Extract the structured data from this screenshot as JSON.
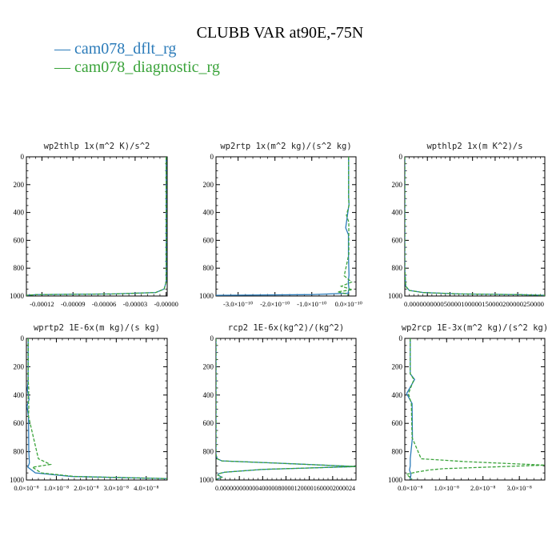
{
  "title": "CLUBB VAR at90E,-75N",
  "legend": [
    {
      "label": "— cam078_dflt_rg",
      "color": "#2b7bb9"
    },
    {
      "label": "— cam078_diagnostic_rg",
      "color": "#3aa33a"
    }
  ],
  "chart_data": [
    {
      "type": "line",
      "title": "wp2thlp   1x(m^2 K)/s^2",
      "ylim": [
        1000,
        0
      ],
      "yticks": [
        "0",
        "200",
        "400",
        "600",
        "800",
        "1000"
      ],
      "xlim": [
        -0.000135,
        1e-06
      ],
      "xticks": [
        {
          "v": -0.00012,
          "label": "-0.00012"
        },
        {
          "v": -9e-05,
          "label": "-0.00009"
        },
        {
          "v": -6e-05,
          "label": "-0.00006"
        },
        {
          "v": -3e-05,
          "label": "-0.00003"
        },
        {
          "v": 0,
          "label": "-0.00000"
        }
      ],
      "series": [
        {
          "name": "cam078_dflt_rg",
          "color": "#2b7bb9",
          "dash": false,
          "x": [
            0,
            0,
            0,
            -2e-06,
            -1e-05,
            -5e-05,
            -0.000125,
            -0.000135
          ],
          "y": [
            0,
            400,
            900,
            950,
            975,
            985,
            990,
            995
          ]
        },
        {
          "name": "cam078_diagnostic_rg",
          "color": "#3aa33a",
          "dash": true,
          "x": [
            0,
            0,
            0,
            -2e-06,
            -1e-05,
            -5e-05,
            -0.000125,
            -0.000135
          ],
          "y": [
            0,
            400,
            900,
            950,
            975,
            985,
            990,
            995
          ]
        }
      ]
    },
    {
      "type": "line",
      "title": "wp2rtp   1x(m^2 kg)/(s^2 kg)",
      "ylim": [
        1000,
        0
      ],
      "yticks": [
        "0",
        "200",
        "400",
        "600",
        "800",
        "1000"
      ],
      "xlim": [
        -3.6e-10,
        2e-11
      ],
      "xticks": [
        {
          "v": -3e-10,
          "label": "-3.0×10⁻¹⁰"
        },
        {
          "v": -2e-10,
          "label": "-2.0×10⁻¹⁰"
        },
        {
          "v": -1e-10,
          "label": "-1.0×10⁻¹⁰"
        },
        {
          "v": 0,
          "label": "0.0×10⁻¹⁰"
        }
      ],
      "series": [
        {
          "name": "cam078_dflt_rg",
          "color": "#2b7bb9",
          "dash": false,
          "x": [
            0,
            0,
            1e-12,
            -8e-12,
            -5e-13,
            -5e-13,
            1e-12,
            -1e-12,
            1e-12,
            -1e-12,
            -1e-12,
            -1e-10,
            -3.6e-10
          ],
          "y": [
            0,
            290,
            340,
            510,
            560,
            700,
            850,
            900,
            950,
            970,
            980,
            990,
            995
          ]
        },
        {
          "name": "cam078_diagnostic_rg",
          "color": "#3aa33a",
          "dash": true,
          "x": [
            0,
            0,
            1e-12,
            -6e-12,
            5e-13,
            5e-13,
            -1.2e-11,
            8e-12,
            -2e-11,
            1e-11,
            -3e-11,
            -5e-12,
            -2e-12
          ],
          "y": [
            0,
            290,
            350,
            420,
            470,
            700,
            855,
            900,
            930,
            955,
            970,
            985,
            995
          ]
        }
      ]
    },
    {
      "type": "line",
      "title": "wpthlp2   1x(m K^2)/s",
      "ylim": [
        1000,
        0
      ],
      "yticks": [
        "0",
        "200",
        "400",
        "600",
        "800",
        "1000"
      ],
      "xlim": [
        0,
        3.1e-05
      ],
      "xticks": [
        {
          "v": 0,
          "label": "0.00000"
        },
        {
          "v": 5e-06,
          "label": "0.000005"
        },
        {
          "v": 1e-05,
          "label": "0.00001"
        },
        {
          "v": 1.5e-05,
          "label": "0.000015"
        },
        {
          "v": 2e-05,
          "label": "0.00002"
        },
        {
          "v": 2.5e-05,
          "label": "0.000025"
        }
      ],
      "xtick_text": "0.000000000050000100000150000200000250000",
      "series": [
        {
          "name": "cam078_dflt_rg",
          "color": "#2b7bb9",
          "dash": false,
          "x": [
            0,
            0,
            2e-07,
            1e-06,
            4e-06,
            1.2e-05,
            2.5e-05,
            3.1e-05
          ],
          "y": [
            0,
            800,
            930,
            960,
            975,
            985,
            990,
            995
          ]
        },
        {
          "name": "cam078_diagnostic_rg",
          "color": "#3aa33a",
          "dash": true,
          "x": [
            0,
            0,
            2e-07,
            1e-06,
            4e-06,
            1.2e-05,
            2.5e-05,
            3.1e-05
          ],
          "y": [
            0,
            800,
            930,
            960,
            975,
            985,
            990,
            995
          ]
        }
      ]
    },
    {
      "type": "line",
      "title": "wprtp2   1E-6x(m kg)/(s kg)",
      "ylim": [
        1000,
        0
      ],
      "yticks": [
        "0",
        "200",
        "400",
        "600",
        "800",
        "1000"
      ],
      "xlim": [
        0,
        4.7e-08
      ],
      "xticks": [
        {
          "v": 0,
          "label": "0.0×10⁻⁸"
        },
        {
          "v": 1e-08,
          "label": "1.0×10⁻⁸"
        },
        {
          "v": 2e-08,
          "label": "2.0×10⁻⁸"
        },
        {
          "v": 3e-08,
          "label": "3.0×10⁻⁸"
        },
        {
          "v": 4e-08,
          "label": "4.0×10⁻⁸"
        }
      ],
      "series": [
        {
          "name": "cam078_dflt_rg",
          "color": "#2b7bb9",
          "dash": false,
          "x": [
            6e-10,
            6e-10,
            3e-10,
            9e-10,
            2e-10,
            7e-10,
            8e-10,
            1e-09,
            5e-10,
            3e-09,
            1.5e-08,
            4.7e-08
          ],
          "y": [
            0,
            300,
            360,
            430,
            480,
            550,
            800,
            880,
            910,
            950,
            975,
            990
          ]
        },
        {
          "name": "cam078_diagnostic_rg",
          "color": "#3aa33a",
          "dash": true,
          "x": [
            6e-10,
            6e-10,
            8e-10,
            6e-10,
            8e-10,
            7e-10,
            4e-09,
            8e-09,
            2e-09,
            5e-09,
            1.6e-08,
            4.7e-08
          ],
          "y": [
            0,
            300,
            360,
            430,
            480,
            550,
            850,
            890,
            910,
            950,
            975,
            990
          ]
        }
      ]
    },
    {
      "type": "line",
      "title": "rcp2   1E-6x(kg^2)/(kg^2)",
      "ylim": [
        1000,
        0
      ],
      "yticks": [
        "0",
        "200",
        "400",
        "600",
        "800",
        "1000"
      ],
      "xlim": [
        0,
        2.4e-12
      ],
      "xticks": [
        {
          "v": 0,
          "label": "0.0000000"
        },
        {
          "v": 4e-13,
          "label": "0.0000004"
        },
        {
          "v": 8e-13,
          "label": "0.0000008"
        },
        {
          "v": 1.2e-12,
          "label": "0.0000012"
        },
        {
          "v": 1.6e-12,
          "label": "0.0000016"
        },
        {
          "v": 2e-12,
          "label": "0.000002"
        },
        {
          "v": 2.4e-12,
          "label": "0.0000024"
        }
      ],
      "xtick_text": "0.000000000000400000800001200001600002000024",
      "series": [
        {
          "name": "cam078_dflt_rg",
          "color": "#2b7bb9",
          "dash": false,
          "x": [
            0,
            0,
            2e-14,
            1e-13,
            1e-12,
            2.4e-12,
            8e-13,
            1.5e-13,
            5e-14,
            3e-14,
            1e-13,
            1e-14
          ],
          "y": [
            0,
            820,
            850,
            865,
            880,
            905,
            925,
            945,
            955,
            965,
            980,
            995
          ]
        },
        {
          "name": "cam078_diagnostic_rg",
          "color": "#3aa33a",
          "dash": true,
          "x": [
            0,
            0,
            2e-14,
            1e-13,
            1e-12,
            2.4e-12,
            8e-13,
            1.5e-13,
            5e-14,
            3e-14,
            1e-13,
            1e-14
          ],
          "y": [
            0,
            820,
            850,
            865,
            880,
            905,
            925,
            945,
            955,
            965,
            980,
            995
          ]
        }
      ]
    },
    {
      "type": "line",
      "title": "wp2rcp   1E-3x(m^2 kg)/(s^2 kg)",
      "ylim": [
        1000,
        0
      ],
      "yticks": [
        "0",
        "200",
        "400",
        "600",
        "800",
        "1000"
      ],
      "xlim": [
        -1.5e-09,
        3.7e-08
      ],
      "xticks": [
        {
          "v": 0,
          "label": "0.0×10⁻⁸"
        },
        {
          "v": 1e-08,
          "label": "1.0×10⁻⁸"
        },
        {
          "v": 2e-08,
          "label": "2.0×10⁻⁸"
        },
        {
          "v": 3e-08,
          "label": "3.0×10⁻⁸"
        }
      ],
      "series": [
        {
          "name": "cam078_dflt_rg",
          "color": "#2b7bb9",
          "dash": false,
          "x": [
            0,
            0,
            1.2e-09,
            -1e-09,
            5e-10,
            6e-10,
            0.0,
            0.0,
            -2e-10,
            2e-10,
            0
          ],
          "y": [
            0,
            250,
            290,
            390,
            460,
            700,
            850,
            900,
            930,
            960,
            995
          ]
        },
        {
          "name": "cam078_diagnostic_rg",
          "color": "#3aa33a",
          "dash": true,
          "x": [
            0,
            0,
            1e-09,
            -5e-10,
            3e-10,
            5e-10,
            3e-09,
            1.5e-08,
            3.7e-08,
            9e-09,
            5e-09,
            1.5e-09,
            -1e-09,
            5e-10
          ],
          "y": [
            0,
            250,
            290,
            390,
            460,
            700,
            850,
            870,
            895,
            920,
            930,
            945,
            960,
            995
          ]
        }
      ]
    }
  ]
}
